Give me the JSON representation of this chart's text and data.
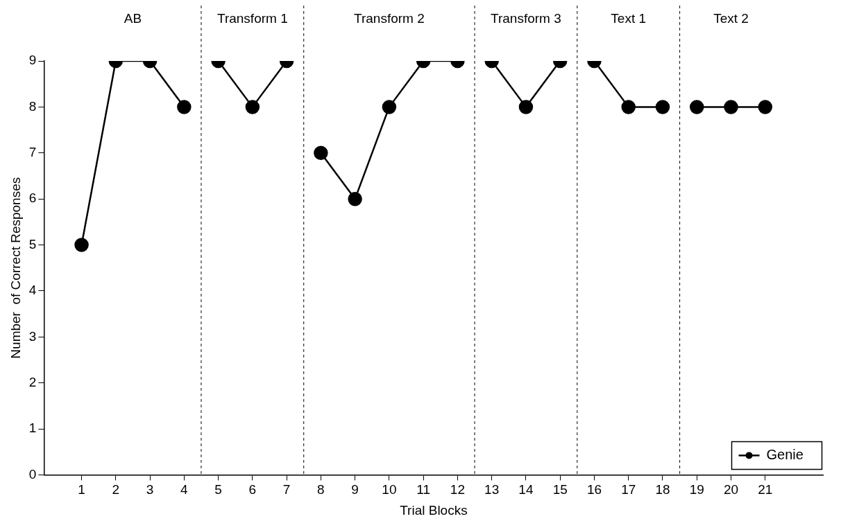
{
  "chart_data": {
    "type": "line",
    "xlabel": "Trial Blocks",
    "ylabel": "Number  of Correct Responses",
    "x": [
      1,
      2,
      3,
      4,
      5,
      6,
      7,
      8,
      9,
      10,
      11,
      12,
      13,
      14,
      15,
      16,
      17,
      18,
      19,
      20,
      21
    ],
    "series": [
      {
        "name": "Genie",
        "color": "#000000",
        "values": [
          5,
          9,
          9,
          8,
          9,
          8,
          9,
          7,
          6,
          8,
          9,
          9,
          9,
          8,
          9,
          9,
          8,
          8,
          8,
          8,
          8
        ]
      }
    ],
    "xlim": [
      -0.1,
      22.7
    ],
    "xticks": [
      1,
      2,
      3,
      4,
      5,
      6,
      7,
      8,
      9,
      10,
      11,
      12,
      13,
      14,
      15,
      16,
      17,
      18,
      19,
      20,
      21
    ],
    "ylim": [
      0,
      9
    ],
    "yticks": [
      0,
      1,
      2,
      3,
      4,
      5,
      6,
      7,
      8,
      9
    ],
    "ref_lines": [
      {
        "axis": "x",
        "value": 4.5,
        "line_style": "dashed"
      },
      {
        "axis": "x",
        "value": 7.5,
        "line_style": "dashed"
      },
      {
        "axis": "x",
        "value": 12.5,
        "line_style": "dashed"
      },
      {
        "axis": "x",
        "value": 15.5,
        "line_style": "dashed"
      },
      {
        "axis": "x",
        "value": 18.5,
        "line_style": "dashed"
      }
    ],
    "annotations": [
      "AB",
      "Transform 1",
      "Transform 2",
      "Transform 3",
      "Text 1",
      "Text 2"
    ],
    "grid": false,
    "legend": "bottom right",
    "marker": "circle",
    "line_style": "solid"
  }
}
